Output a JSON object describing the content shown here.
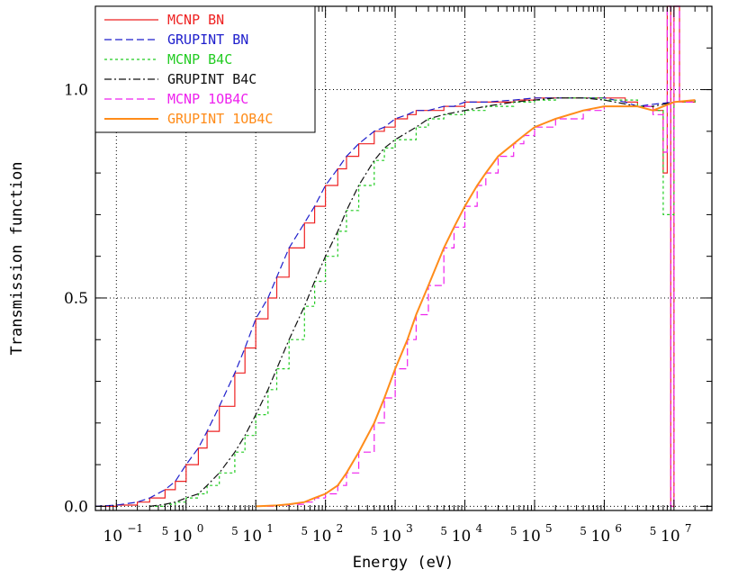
{
  "chart_data": {
    "type": "line",
    "title": "",
    "xlabel": "Energy (eV)",
    "ylabel": "Transmission function",
    "xscale": "log",
    "xlim": [
      0.05,
      35000000.0
    ],
    "ylim": [
      -0.01,
      1.2
    ],
    "x_ticks": [
      {
        "value": 0.1,
        "base": "10",
        "exp": "−1"
      },
      {
        "value": 1,
        "base": "10",
        "exp": "0"
      },
      {
        "value": 10,
        "base": "10",
        "exp": "1"
      },
      {
        "value": 100,
        "base": "10",
        "exp": "2"
      },
      {
        "value": 1000,
        "base": "10",
        "exp": "3"
      },
      {
        "value": 10000,
        "base": "10",
        "exp": "4"
      },
      {
        "value": 100000,
        "base": "10",
        "exp": "5"
      },
      {
        "value": 1000000,
        "base": "10",
        "exp": "6"
      },
      {
        "value": 10000000,
        "base": "10",
        "exp": "7"
      }
    ],
    "x_minor_labels": [
      {
        "value": 0.5,
        "label": "5"
      },
      {
        "value": 5,
        "label": "5"
      },
      {
        "value": 50,
        "label": "5"
      },
      {
        "value": 500,
        "label": "5"
      },
      {
        "value": 5000,
        "label": "5"
      },
      {
        "value": 50000,
        "label": "5"
      },
      {
        "value": 500000,
        "label": "5"
      },
      {
        "value": 5000000,
        "label": "5"
      }
    ],
    "y_ticks": [
      {
        "value": 0.0,
        "label": "0.0"
      },
      {
        "value": 0.5,
        "label": "0.5"
      },
      {
        "value": 1.0,
        "label": "1.0"
      }
    ],
    "grid": true,
    "legend_position": "top-left",
    "series": [
      {
        "name": "MCNP BN",
        "color": "#ee2222",
        "style": "solid",
        "kind": "histogram",
        "x": [
          0.05,
          0.1,
          0.2,
          0.3,
          0.5,
          0.7,
          1,
          1.5,
          2,
          3,
          5,
          7,
          10,
          15,
          20,
          30,
          50,
          70,
          100,
          150,
          200,
          300,
          500,
          700,
          1000,
          1500,
          2000,
          3000,
          5000,
          7000,
          10000,
          20000,
          50000,
          100000,
          200000,
          500000,
          1000000,
          2000000,
          3000000,
          5000000,
          7000000,
          8000000,
          9000000,
          10000000,
          12000000,
          20000000
        ],
        "y": [
          0.0,
          0.003,
          0.01,
          0.02,
          0.04,
          0.06,
          0.1,
          0.14,
          0.18,
          0.24,
          0.32,
          0.38,
          0.45,
          0.5,
          0.55,
          0.62,
          0.68,
          0.72,
          0.77,
          0.81,
          0.84,
          0.87,
          0.9,
          0.91,
          0.93,
          0.94,
          0.95,
          0.95,
          0.96,
          0.96,
          0.97,
          0.97,
          0.975,
          0.98,
          0.98,
          0.98,
          0.98,
          0.97,
          0.96,
          0.95,
          0.8,
          1.2,
          0.0,
          1.2,
          0.97,
          0.975
        ]
      },
      {
        "name": "GRUPINT BN",
        "color": "#1f1fcc",
        "style": "dashed",
        "kind": "smooth",
        "x": [
          0.05,
          0.1,
          0.2,
          0.3,
          0.5,
          0.7,
          1,
          1.5,
          2,
          3,
          5,
          7,
          10,
          15,
          20,
          30,
          50,
          70,
          100,
          150,
          200,
          300,
          500,
          700,
          1000,
          1500,
          2000,
          3000,
          5000,
          7000,
          10000,
          20000,
          50000,
          100000,
          200000,
          500000,
          1000000,
          2000000,
          3000000,
          5000000,
          10000000,
          20000000
        ],
        "y": [
          0.0,
          0.003,
          0.01,
          0.02,
          0.04,
          0.06,
          0.1,
          0.14,
          0.18,
          0.24,
          0.32,
          0.38,
          0.45,
          0.5,
          0.55,
          0.62,
          0.68,
          0.72,
          0.77,
          0.81,
          0.84,
          0.87,
          0.9,
          0.91,
          0.93,
          0.94,
          0.95,
          0.95,
          0.96,
          0.96,
          0.97,
          0.97,
          0.975,
          0.98,
          0.98,
          0.98,
          0.98,
          0.97,
          0.96,
          0.965,
          0.97,
          0.975
        ]
      },
      {
        "name": "MCNP B4C",
        "color": "#22cc22",
        "style": "dotted",
        "kind": "histogram",
        "x": [
          0.3,
          0.5,
          0.7,
          1,
          1.5,
          2,
          3,
          5,
          7,
          10,
          15,
          20,
          30,
          50,
          70,
          100,
          150,
          200,
          300,
          500,
          700,
          1000,
          2000,
          3000,
          5000,
          10000,
          20000,
          50000,
          100000,
          200000,
          500000,
          1000000,
          3000000,
          5000000,
          7000000,
          10000000,
          20000000
        ],
        "y": [
          0.0,
          0.005,
          0.01,
          0.02,
          0.03,
          0.05,
          0.08,
          0.13,
          0.17,
          0.22,
          0.28,
          0.33,
          0.4,
          0.48,
          0.54,
          0.6,
          0.66,
          0.71,
          0.77,
          0.83,
          0.86,
          0.88,
          0.91,
          0.93,
          0.94,
          0.95,
          0.96,
          0.97,
          0.975,
          0.98,
          0.98,
          0.975,
          0.96,
          0.95,
          0.7,
          0.97,
          0.975
        ]
      },
      {
        "name": "GRUPINT B4C",
        "color": "#111111",
        "style": "dashdot",
        "kind": "smooth",
        "x": [
          0.3,
          0.5,
          0.7,
          1,
          1.5,
          2,
          3,
          5,
          7,
          10,
          15,
          20,
          30,
          50,
          70,
          100,
          150,
          200,
          300,
          500,
          700,
          1000,
          2000,
          3000,
          5000,
          10000,
          20000,
          50000,
          100000,
          200000,
          500000,
          1000000,
          3000000,
          5000000,
          10000000,
          20000000
        ],
        "y": [
          0.0,
          0.005,
          0.01,
          0.02,
          0.03,
          0.05,
          0.08,
          0.13,
          0.17,
          0.22,
          0.28,
          0.33,
          0.4,
          0.48,
          0.54,
          0.6,
          0.66,
          0.71,
          0.77,
          0.83,
          0.86,
          0.88,
          0.91,
          0.93,
          0.94,
          0.95,
          0.96,
          0.97,
          0.975,
          0.98,
          0.98,
          0.975,
          0.96,
          0.96,
          0.97,
          0.975
        ]
      },
      {
        "name": "MCNP 1OB4C",
        "color": "#ee22ee",
        "style": "dashed",
        "kind": "histogram",
        "x": [
          10,
          20,
          30,
          50,
          70,
          100,
          150,
          200,
          300,
          500,
          700,
          1000,
          1500,
          2000,
          3000,
          5000,
          7000,
          10000,
          15000,
          20000,
          30000,
          50000,
          70000,
          100000,
          200000,
          500000,
          1000000,
          2000000,
          3000000,
          5000000,
          7000000,
          8000000,
          9000000,
          10000000,
          12000000,
          20000000
        ],
        "y": [
          0.0,
          0.002,
          0.005,
          0.01,
          0.02,
          0.03,
          0.05,
          0.08,
          0.13,
          0.2,
          0.26,
          0.33,
          0.4,
          0.46,
          0.53,
          0.62,
          0.67,
          0.72,
          0.77,
          0.8,
          0.84,
          0.87,
          0.89,
          0.91,
          0.93,
          0.95,
          0.96,
          0.96,
          0.96,
          0.94,
          0.85,
          1.2,
          0.0,
          1.2,
          0.97,
          0.975
        ]
      },
      {
        "name": "GRUPINT 1OB4C",
        "color": "#ff8c1a",
        "style": "solid",
        "kind": "smooth",
        "x": [
          10,
          20,
          30,
          50,
          70,
          100,
          150,
          200,
          300,
          500,
          700,
          1000,
          1500,
          2000,
          3000,
          5000,
          7000,
          10000,
          15000,
          20000,
          30000,
          50000,
          70000,
          100000,
          200000,
          500000,
          1000000,
          2000000,
          3000000,
          5000000,
          10000000,
          20000000
        ],
        "y": [
          0.0,
          0.002,
          0.005,
          0.01,
          0.02,
          0.03,
          0.05,
          0.08,
          0.13,
          0.2,
          0.26,
          0.33,
          0.4,
          0.46,
          0.53,
          0.62,
          0.67,
          0.72,
          0.77,
          0.8,
          0.84,
          0.87,
          0.89,
          0.91,
          0.93,
          0.95,
          0.96,
          0.96,
          0.96,
          0.95,
          0.97,
          0.975
        ]
      }
    ]
  }
}
